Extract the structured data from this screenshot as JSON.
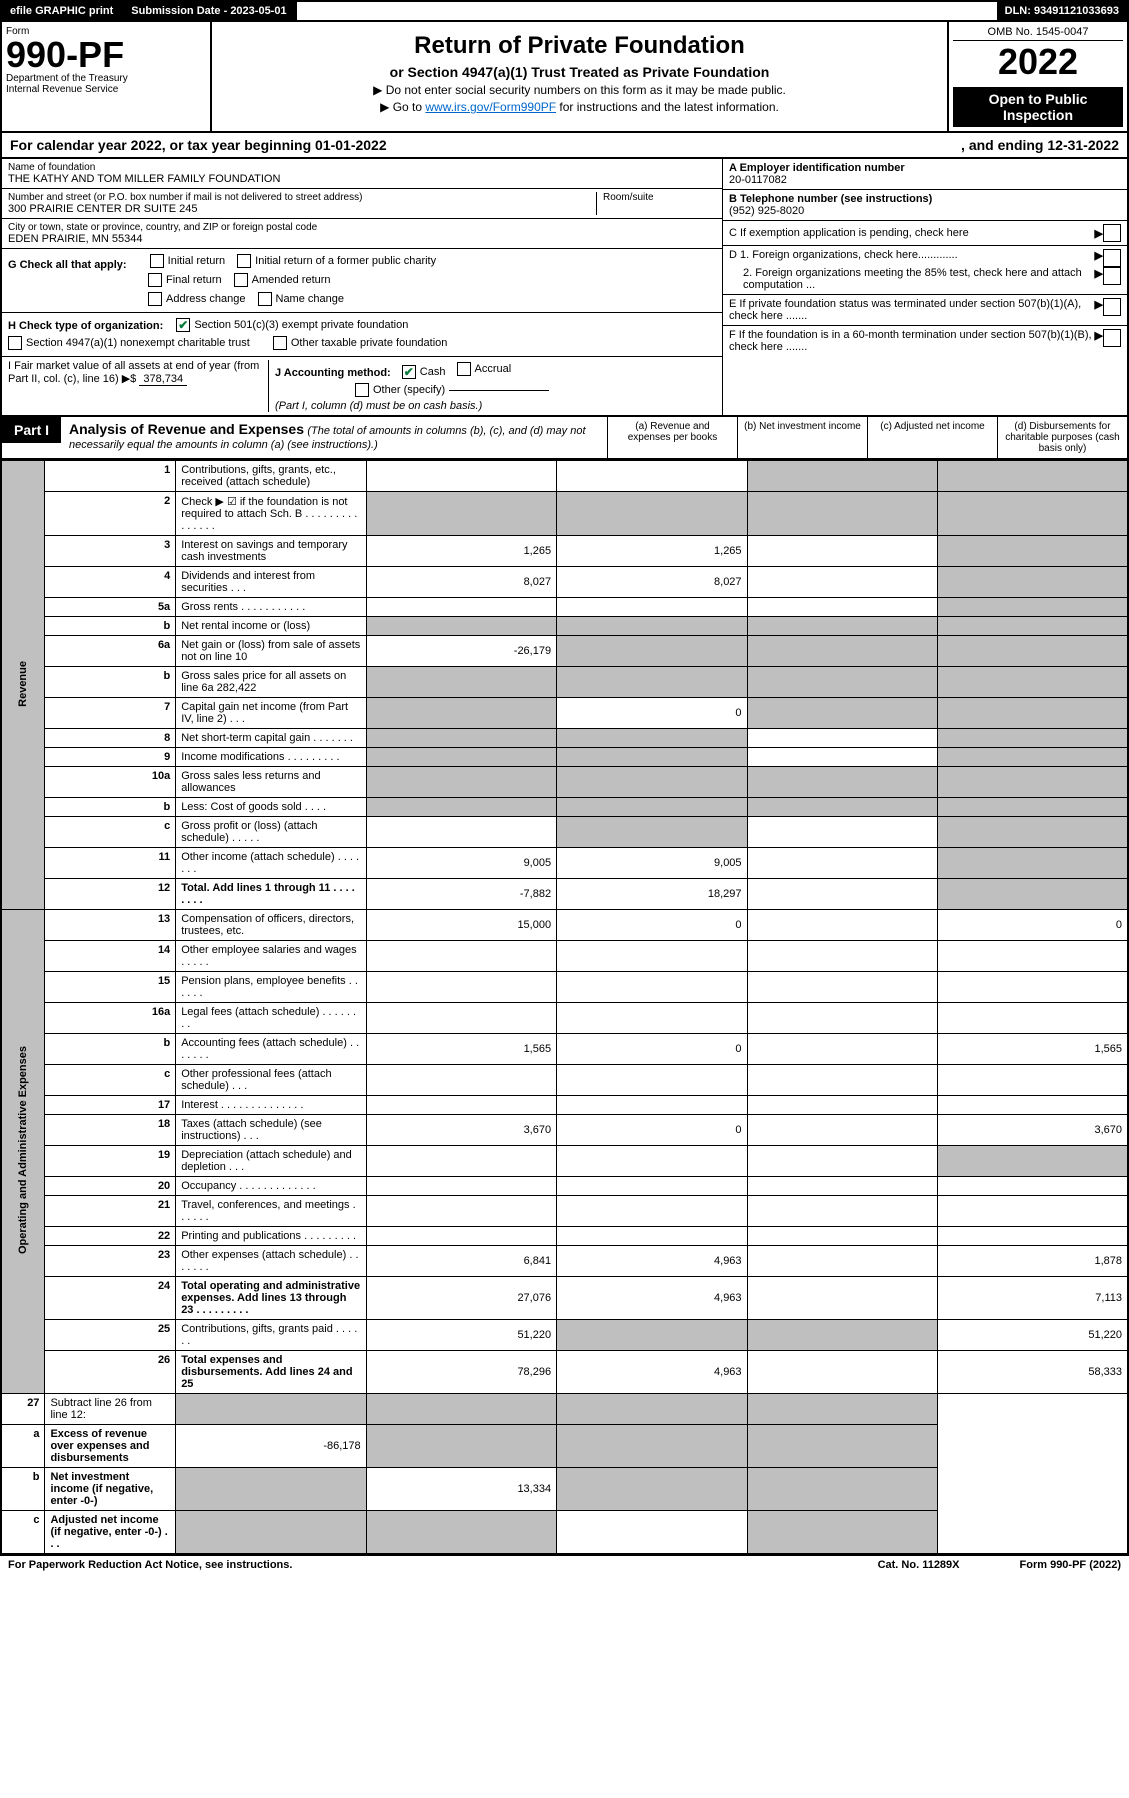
{
  "topBar": {
    "efile": "efile GRAPHIC print",
    "submissionLabel": "Submission Date - 2023-05-01",
    "dln": "DLN: 93491121033693"
  },
  "header": {
    "formLabel": "Form",
    "formNumber": "990-PF",
    "dept": "Department of the Treasury",
    "irs": "Internal Revenue Service",
    "title": "Return of Private Foundation",
    "subtitle": "or Section 4947(a)(1) Trust Treated as Private Foundation",
    "note1": "▶ Do not enter social security numbers on this form as it may be made public.",
    "note2a": "▶ Go to ",
    "note2link": "www.irs.gov/Form990PF",
    "note2b": " for instructions and the latest information.",
    "omb": "OMB No. 1545-0047",
    "year": "2022",
    "openPublic": "Open to Public Inspection"
  },
  "calYear": {
    "text": "For calendar year 2022, or tax year beginning 01-01-2022",
    "ending": ", and ending 12-31-2022"
  },
  "foundationInfo": {
    "nameLabel": "Name of foundation",
    "name": "THE KATHY AND TOM MILLER FAMILY FOUNDATION",
    "addressLabel": "Number and street (or P.O. box number if mail is not delivered to street address)",
    "address": "300 PRAIRIE CENTER DR SUITE 245",
    "roomLabel": "Room/suite",
    "cityLabel": "City or town, state or province, country, and ZIP or foreign postal code",
    "city": "EDEN PRAIRIE, MN  55344",
    "einLabel": "A Employer identification number",
    "ein": "20-0117082",
    "telLabel": "B Telephone number (see instructions)",
    "tel": "(952) 925-8020",
    "cLabel": "C If exemption application is pending, check here",
    "d1": "D 1. Foreign organizations, check here.............",
    "d2": "2. Foreign organizations meeting the 85% test, check here and attach computation ...",
    "eLabel": "E If private foundation status was terminated under section 507(b)(1)(A), check here .......",
    "fLabel": "F If the foundation is in a 60-month termination under section 507(b)(1)(B), check here .......",
    "gLabel": "G Check all that apply:",
    "gOpts": [
      "Initial return",
      "Initial return of a former public charity",
      "Final return",
      "Amended return",
      "Address change",
      "Name change"
    ],
    "hLabel": "H Check type of organization:",
    "hOpt1": "Section 501(c)(3) exempt private foundation",
    "hOpt2": "Section 4947(a)(1) nonexempt charitable trust",
    "hOpt3": "Other taxable private foundation",
    "iLabel": "I Fair market value of all assets at end of year (from Part II, col. (c), line 16)",
    "iValue": "378,734",
    "jLabel": "J Accounting method:",
    "jCash": "Cash",
    "jAccrual": "Accrual",
    "jOther": "Other (specify)",
    "jNote": "(Part I, column (d) must be on cash basis.)"
  },
  "partI": {
    "label": "Part I",
    "title": "Analysis of Revenue and Expenses",
    "subtitle": "(The total of amounts in columns (b), (c), and (d) may not necessarily equal the amounts in column (a) (see instructions).)",
    "colA": "(a) Revenue and expenses per books",
    "colB": "(b) Net investment income",
    "colC": "(c) Adjusted net income",
    "colD": "(d) Disbursements for charitable purposes (cash basis only)"
  },
  "sideLabels": {
    "revenue": "Revenue",
    "expenses": "Operating and Administrative Expenses"
  },
  "rows": [
    {
      "n": "1",
      "desc": "Contributions, gifts, grants, etc., received (attach schedule)",
      "a": "",
      "b": "",
      "c": "grey",
      "d": "grey"
    },
    {
      "n": "2",
      "desc": "Check ▶ ☑ if the foundation is not required to attach Sch. B     .  .  .  .  .  .  .  .  .  .  .  .  .  .  .",
      "a": "grey",
      "b": "grey",
      "c": "grey",
      "d": "grey"
    },
    {
      "n": "3",
      "desc": "Interest on savings and temporary cash investments",
      "a": "1,265",
      "b": "1,265",
      "c": "",
      "d": "grey"
    },
    {
      "n": "4",
      "desc": "Dividends and interest from securities   .   .   .",
      "a": "8,027",
      "b": "8,027",
      "c": "",
      "d": "grey"
    },
    {
      "n": "5a",
      "desc": "Gross rents     .   .   .   .   .   .   .   .   .   .   .",
      "a": "",
      "b": "",
      "c": "",
      "d": "grey"
    },
    {
      "n": "b",
      "desc": "Net rental income or (loss)  ",
      "a": "grey",
      "b": "grey",
      "c": "grey",
      "d": "grey"
    },
    {
      "n": "6a",
      "desc": "Net gain or (loss) from sale of assets not on line 10",
      "a": "-26,179",
      "b": "grey",
      "c": "grey",
      "d": "grey"
    },
    {
      "n": "b",
      "desc": "Gross sales price for all assets on line 6a           282,422",
      "a": "grey",
      "b": "grey",
      "c": "grey",
      "d": "grey"
    },
    {
      "n": "7",
      "desc": "Capital gain net income (from Part IV, line 2)   .   .   .",
      "a": "grey",
      "b": "0",
      "c": "grey",
      "d": "grey"
    },
    {
      "n": "8",
      "desc": "Net short-term capital gain  .   .   .   .   .   .   .",
      "a": "grey",
      "b": "grey",
      "c": "",
      "d": "grey"
    },
    {
      "n": "9",
      "desc": "Income modifications  .   .   .   .   .   .   .   .   .",
      "a": "grey",
      "b": "grey",
      "c": "",
      "d": "grey"
    },
    {
      "n": "10a",
      "desc": "Gross sales less returns and allowances",
      "a": "grey",
      "b": "grey",
      "c": "grey",
      "d": "grey"
    },
    {
      "n": "b",
      "desc": "Less: Cost of goods sold    .   .   .   .",
      "a": "grey",
      "b": "grey",
      "c": "grey",
      "d": "grey"
    },
    {
      "n": "c",
      "desc": "Gross profit or (loss) (attach schedule)     .   .   .   .   .",
      "a": "",
      "b": "grey",
      "c": "",
      "d": "grey"
    },
    {
      "n": "11",
      "desc": "Other income (attach schedule)   .   .   .   .   .   .   .",
      "a": "9,005",
      "b": "9,005",
      "c": "",
      "d": "grey"
    },
    {
      "n": "12",
      "desc": "Total. Add lines 1 through 11   .   .   .   .   .   .   .   .",
      "a": "-7,882",
      "b": "18,297",
      "c": "",
      "d": "grey",
      "bold": true
    }
  ],
  "expRows": [
    {
      "n": "13",
      "desc": "Compensation of officers, directors, trustees, etc.",
      "a": "15,000",
      "b": "0",
      "c": "",
      "d": "0"
    },
    {
      "n": "14",
      "desc": "Other employee salaries and wages   .   .   .   .   .",
      "a": "",
      "b": "",
      "c": "",
      "d": ""
    },
    {
      "n": "15",
      "desc": "Pension plans, employee benefits  .   .   .   .   .   .",
      "a": "",
      "b": "",
      "c": "",
      "d": ""
    },
    {
      "n": "16a",
      "desc": "Legal fees (attach schedule)  .   .   .   .   .   .   .   .",
      "a": "",
      "b": "",
      "c": "",
      "d": ""
    },
    {
      "n": "b",
      "desc": "Accounting fees (attach schedule)  .   .   .   .   .   .   .",
      "a": "1,565",
      "b": "0",
      "c": "",
      "d": "1,565"
    },
    {
      "n": "c",
      "desc": "Other professional fees (attach schedule)    .   .   .",
      "a": "",
      "b": "",
      "c": "",
      "d": ""
    },
    {
      "n": "17",
      "desc": "Interest  .   .   .   .   .   .   .   .   .   .   .   .   .   .",
      "a": "",
      "b": "",
      "c": "",
      "d": ""
    },
    {
      "n": "18",
      "desc": "Taxes (attach schedule) (see instructions)     .   .   .",
      "a": "3,670",
      "b": "0",
      "c": "",
      "d": "3,670"
    },
    {
      "n": "19",
      "desc": "Depreciation (attach schedule) and depletion    .   .   .",
      "a": "",
      "b": "",
      "c": "",
      "d": "grey"
    },
    {
      "n": "20",
      "desc": "Occupancy  .   .   .   .   .   .   .   .   .   .   .   .   .",
      "a": "",
      "b": "",
      "c": "",
      "d": ""
    },
    {
      "n": "21",
      "desc": "Travel, conferences, and meetings  .   .   .   .   .   .",
      "a": "",
      "b": "",
      "c": "",
      "d": ""
    },
    {
      "n": "22",
      "desc": "Printing and publications  .   .   .   .   .   .   .   .   .",
      "a": "",
      "b": "",
      "c": "",
      "d": ""
    },
    {
      "n": "23",
      "desc": "Other expenses (attach schedule)  .   .   .   .   .   .   .",
      "a": "6,841",
      "b": "4,963",
      "c": "",
      "d": "1,878"
    },
    {
      "n": "24",
      "desc": "Total operating and administrative expenses. Add lines 13 through 23  .   .   .   .   .   .   .   .   .",
      "a": "27,076",
      "b": "4,963",
      "c": "",
      "d": "7,113",
      "bold": true
    },
    {
      "n": "25",
      "desc": "Contributions, gifts, grants paid    .   .   .   .   .   .",
      "a": "51,220",
      "b": "grey",
      "c": "grey",
      "d": "51,220"
    },
    {
      "n": "26",
      "desc": "Total expenses and disbursements. Add lines 24 and 25",
      "a": "78,296",
      "b": "4,963",
      "c": "",
      "d": "58,333",
      "bold": true
    }
  ],
  "bottomRows": [
    {
      "n": "27",
      "desc": "Subtract line 26 from line 12:",
      "a": "grey",
      "b": "grey",
      "c": "grey",
      "d": "grey"
    },
    {
      "n": "a",
      "desc": "Excess of revenue over expenses and disbursements",
      "a": "-86,178",
      "b": "grey",
      "c": "grey",
      "d": "grey",
      "bold": true
    },
    {
      "n": "b",
      "desc": "Net investment income (if negative, enter -0-)",
      "a": "grey",
      "b": "13,334",
      "c": "grey",
      "d": "grey",
      "bold": true
    },
    {
      "n": "c",
      "desc": "Adjusted net income (if negative, enter -0-)   .   .   .",
      "a": "grey",
      "b": "grey",
      "c": "",
      "d": "grey",
      "bold": true
    }
  ],
  "footer": {
    "left": "For Paperwork Reduction Act Notice, see instructions.",
    "center": "Cat. No. 11289X",
    "right": "Form 990-PF (2022)"
  }
}
